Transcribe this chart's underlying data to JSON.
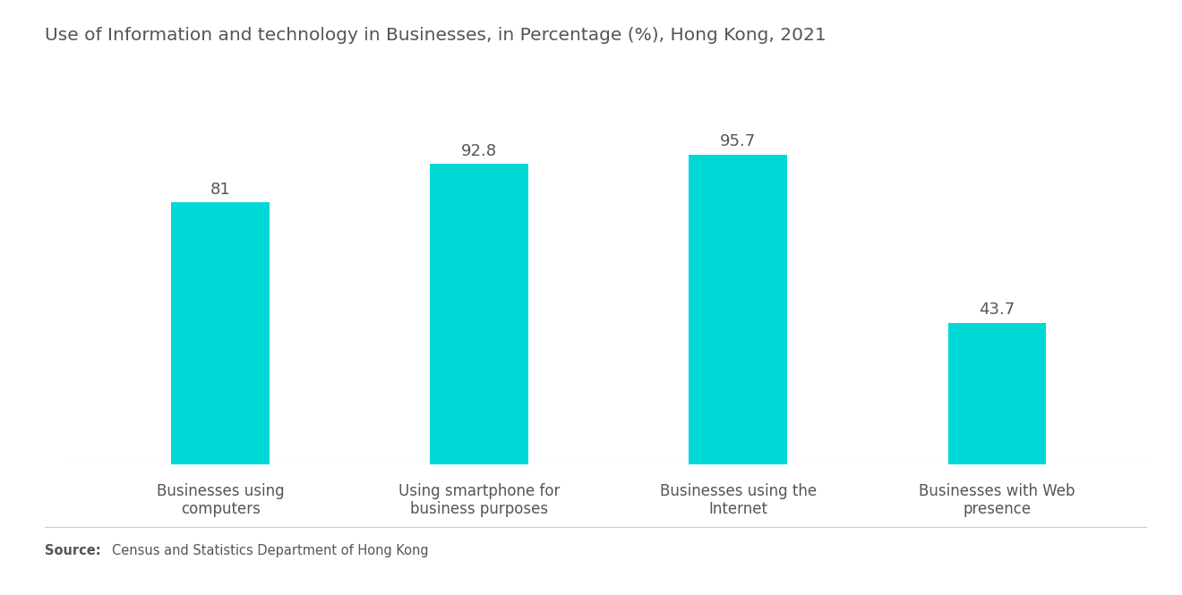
{
  "title": "Use of Information and technology in Businesses, in Percentage (%), Hong Kong, 2021",
  "categories": [
    "Businesses using\ncomputers",
    "Using smartphone for\nbusiness purposes",
    "Businesses using the\nInternet",
    "Businesses with Web\npresence"
  ],
  "values": [
    81,
    92.8,
    95.7,
    43.7
  ],
  "bar_color": "#00D8D6",
  "value_labels": [
    "81",
    "92.8",
    "95.7",
    "43.7"
  ],
  "title_fontsize": 14.5,
  "label_fontsize": 12,
  "value_fontsize": 13,
  "source_bold": "Source:",
  "source_text": "Census and Statistics Department of Hong Kong",
  "background_color": "#ffffff",
  "ylim": [
    0,
    115
  ],
  "bar_width": 0.38,
  "title_color": "#555555",
  "label_color": "#555555",
  "value_color": "#555555",
  "source_fontsize": 10.5
}
